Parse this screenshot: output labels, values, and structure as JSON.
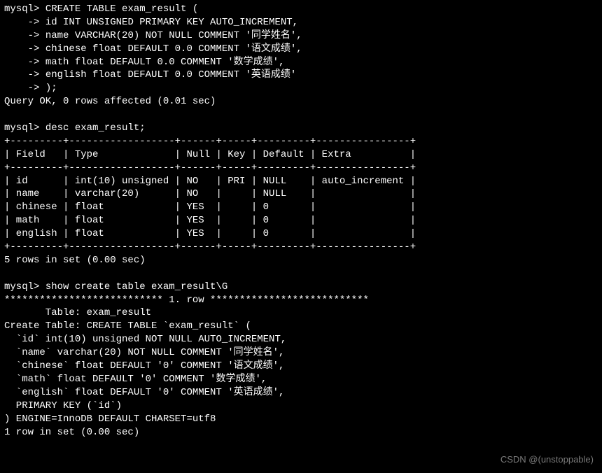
{
  "prompt": "mysql>",
  "cont": "    ->",
  "cmd1": {
    "l0": " CREATE TABLE exam_result (",
    "l1": " id INT UNSIGNED PRIMARY KEY AUTO_INCREMENT,",
    "l2": " name VARCHAR(20) NOT NULL COMMENT '同学姓名',",
    "l3": " chinese float DEFAULT 0.0 COMMENT '语文成绩',",
    "l4": " math float DEFAULT 0.0 COMMENT '数学成绩',",
    "l5": " english float DEFAULT 0.0 COMMENT '英语成绩'",
    "l6": " );"
  },
  "result1": "Query OK, 0 rows affected (0.01 sec)",
  "cmd2": " desc exam_result;",
  "table": {
    "border": "+---------+------------------+------+-----+---------+----------------+",
    "header": "| Field   | Type             | Null | Key | Default | Extra          |",
    "r1": "| id      | int(10) unsigned | NO   | PRI | NULL    | auto_increment |",
    "r2": "| name    | varchar(20)      | NO   |     | NULL    |                |",
    "r3": "| chinese | float            | YES  |     | 0       |                |",
    "r4": "| math    | float            | YES  |     | 0       |                |",
    "r5": "| english | float            | YES  |     | 0       |                |"
  },
  "result2": "5 rows in set (0.00 sec)",
  "cmd3": " show create table exam_result\\G",
  "stars": "*************************** 1. row ***************************",
  "create": {
    "l0": "       Table: exam_result",
    "l1": "Create Table: CREATE TABLE `exam_result` (",
    "l2": "  `id` int(10) unsigned NOT NULL AUTO_INCREMENT,",
    "l3": "  `name` varchar(20) NOT NULL COMMENT '同学姓名',",
    "l4": "  `chinese` float DEFAULT '0' COMMENT '语文成绩',",
    "l5": "  `math` float DEFAULT '0' COMMENT '数学成绩',",
    "l6": "  `english` float DEFAULT '0' COMMENT '英语成绩',",
    "l7": "  PRIMARY KEY (`id`)",
    "l8": ") ENGINE=InnoDB DEFAULT CHARSET=utf8"
  },
  "result3": "1 row in set (0.00 sec)",
  "watermark": "CSDN @(unstoppable)",
  "colors": {
    "bg": "#000000",
    "fg": "#ffffff",
    "watermark": "#7a7a7a"
  }
}
